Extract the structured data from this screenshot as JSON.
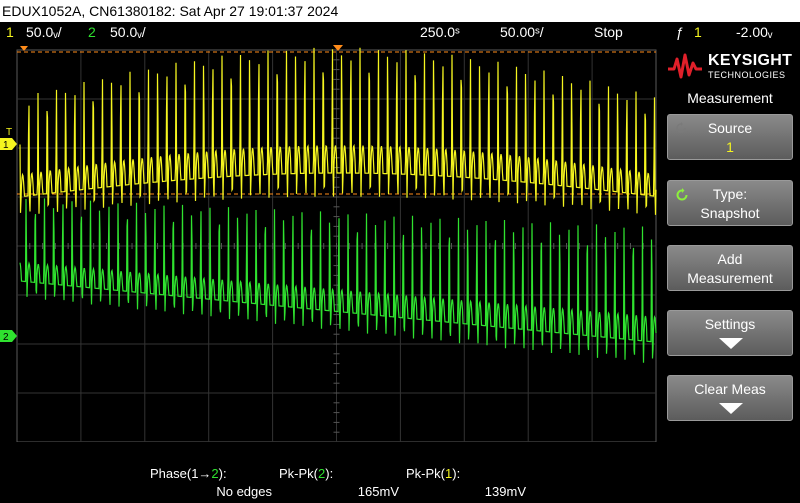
{
  "title_bar": {
    "text": "EDUX1052A, CN61380182: Sat Apr 27 19:01:37 2024"
  },
  "status_bar": {
    "ch1_number": "1",
    "ch1_scale": "50.0ᵥ/",
    "ch2_number": "2",
    "ch2_scale": "50.0ᵥ/",
    "timebase": "250.0ˢ",
    "delay": "50.00ˢ/",
    "run_state": "Stop",
    "trigger_icon": "trigger-edge-icon",
    "trigger_glyph": "ƒ",
    "trigger_source": "1",
    "trigger_level": "-2.00ᵥ"
  },
  "waveform_display": {
    "ch1_marker": "1",
    "ch2_marker": "2",
    "trigger_level_marker": "T",
    "colors": {
      "ch1": "#f5f51f",
      "ch2": "#2fe22f",
      "grid": "#3a3a3a",
      "trigger": "#ff8c1a"
    }
  },
  "measurements": [
    {
      "label_prefix": "Phase(1→",
      "label_src": "2",
      "label_suffix": "):",
      "value": "No edges"
    },
    {
      "label_prefix": "Pk-Pk(",
      "label_src": "2",
      "label_suffix": "):",
      "value": "165mV"
    },
    {
      "label_prefix": "Pk-Pk(",
      "label_src": "1",
      "label_suffix": "):",
      "value": "139mV"
    }
  ],
  "side_panel": {
    "brand": "KEYSIGHT",
    "brand_sub": "TECHNOLOGIES",
    "heading": "Measurement",
    "softkeys": [
      {
        "line1": "Source",
        "line2": "1"
      },
      {
        "line1": "Type:",
        "line2": "Snapshot"
      },
      {
        "line1": "Add",
        "line2": "Measurement"
      },
      {
        "line1": "Settings"
      },
      {
        "line1": "Clear Meas"
      }
    ]
  }
}
